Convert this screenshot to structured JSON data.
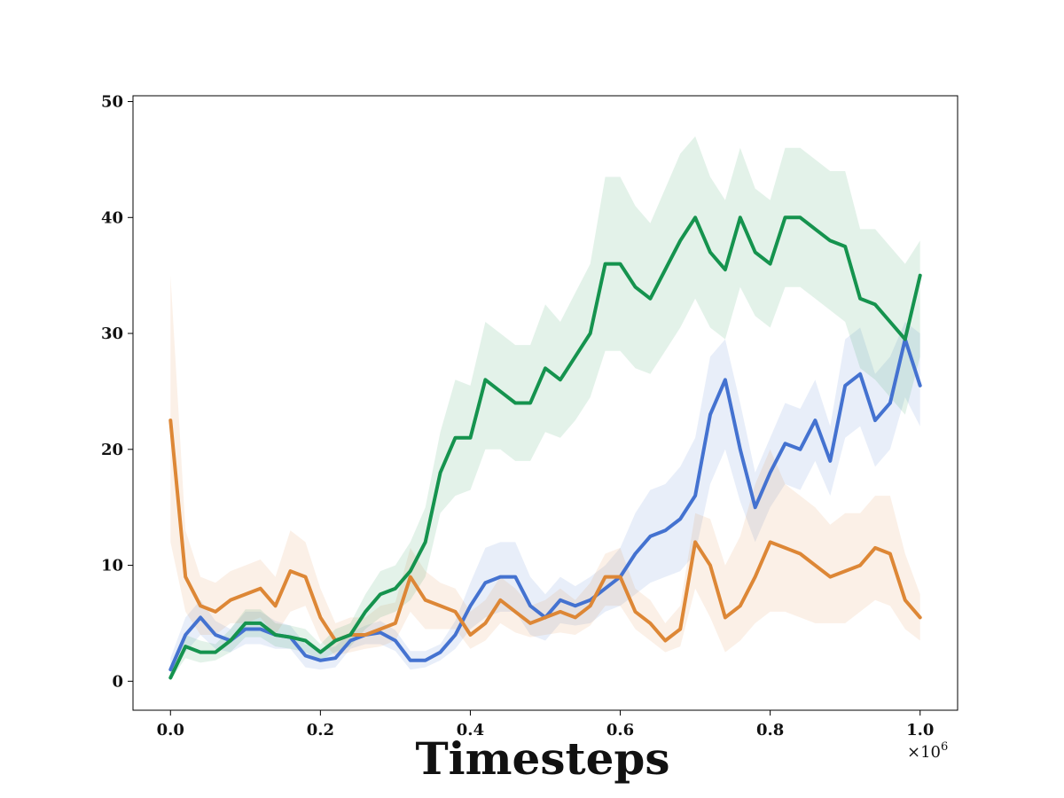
{
  "chart_data": {
    "type": "line",
    "title": "",
    "xlabel": "Timesteps",
    "ylabel": "",
    "x_offset_label": "×10",
    "x_offset_exponent": "6",
    "x_scale": 1000000,
    "xlim": [
      -0.05,
      1.05
    ],
    "ylim": [
      -2.5,
      50.5
    ],
    "xticks": [
      0.0,
      0.2,
      0.4,
      0.6,
      0.8,
      1.0
    ],
    "xtick_labels": [
      "0.0",
      "0.2",
      "0.4",
      "0.6",
      "0.8",
      "1.0"
    ],
    "yticks": [
      0,
      10,
      20,
      30,
      40,
      50
    ],
    "ytick_labels": [
      "0",
      "10",
      "20",
      "30",
      "40",
      "50"
    ],
    "grid": false,
    "legend": "none",
    "x": [
      0.0,
      0.02,
      0.04,
      0.06,
      0.08,
      0.1,
      0.12,
      0.14,
      0.16,
      0.18,
      0.2,
      0.22,
      0.24,
      0.26,
      0.28,
      0.3,
      0.32,
      0.34,
      0.36,
      0.38,
      0.4,
      0.42,
      0.44,
      0.46,
      0.48,
      0.5,
      0.52,
      0.54,
      0.56,
      0.58,
      0.6,
      0.62,
      0.64,
      0.66,
      0.68,
      0.7,
      0.72,
      0.74,
      0.76,
      0.78,
      0.8,
      0.82,
      0.84,
      0.86,
      0.88,
      0.9,
      0.92,
      0.94,
      0.96,
      0.98,
      1.0
    ],
    "series": [
      {
        "color": "#4472d0",
        "values": [
          1.0,
          4.0,
          5.5,
          4.0,
          3.5,
          4.5,
          4.5,
          4.0,
          3.8,
          2.2,
          1.8,
          2.0,
          3.5,
          4.0,
          4.2,
          3.5,
          1.8,
          1.8,
          2.5,
          4.0,
          6.5,
          8.5,
          9.0,
          9.0,
          6.5,
          5.5,
          7.0,
          6.5,
          7.0,
          8.0,
          9.0,
          11.0,
          12.5,
          13.0,
          14.0,
          16.0,
          23.0,
          26.0,
          20.0,
          15.0,
          18.0,
          20.5,
          20.0,
          22.5,
          19.0,
          25.5,
          26.5,
          22.5,
          24.0,
          29.5,
          25.5
        ],
        "lower": [
          0.5,
          2.5,
          4.0,
          2.8,
          2.5,
          3.2,
          3.2,
          2.8,
          2.8,
          1.2,
          1.0,
          1.2,
          2.8,
          3.2,
          3.2,
          2.6,
          1.0,
          1.2,
          1.8,
          2.8,
          4.5,
          5.5,
          6.0,
          6.0,
          4.0,
          3.5,
          5.0,
          4.8,
          5.0,
          6.0,
          6.5,
          7.5,
          8.5,
          9.0,
          9.5,
          11.0,
          17.0,
          20.0,
          15.5,
          12.0,
          15.0,
          17.0,
          16.5,
          19.0,
          16.0,
          21.0,
          22.0,
          18.5,
          20.0,
          24.5,
          22.0
        ],
        "upper": [
          2.0,
          5.5,
          7.0,
          5.2,
          4.5,
          6.0,
          6.0,
          5.2,
          4.8,
          3.2,
          2.8,
          3.0,
          4.2,
          4.8,
          5.2,
          4.4,
          2.6,
          2.6,
          3.2,
          5.2,
          8.5,
          11.5,
          12.0,
          12.0,
          9.0,
          7.5,
          9.0,
          8.2,
          9.0,
          10.0,
          11.5,
          14.5,
          16.5,
          17.0,
          18.5,
          21.0,
          28.0,
          29.5,
          24.0,
          18.0,
          21.0,
          24.0,
          23.5,
          26.0,
          22.0,
          29.5,
          30.5,
          26.5,
          28.0,
          31.0,
          30.0
        ]
      },
      {
        "color": "#dd8736",
        "values": [
          22.5,
          9.0,
          6.5,
          6.0,
          7.0,
          7.5,
          8.0,
          6.5,
          9.5,
          9.0,
          5.5,
          3.5,
          4.0,
          4.0,
          4.5,
          5.0,
          9.0,
          7.0,
          6.5,
          6.0,
          4.0,
          5.0,
          7.0,
          6.0,
          5.0,
          5.5,
          6.0,
          5.5,
          6.5,
          9.0,
          9.0,
          6.0,
          5.0,
          3.5,
          4.5,
          12.0,
          10.0,
          5.5,
          6.5,
          9.0,
          12.0,
          11.5,
          11.0,
          10.0,
          9.0,
          9.5,
          10.0,
          11.5,
          11.0,
          7.0,
          5.5
        ],
        "lower": [
          12.0,
          6.0,
          4.0,
          4.0,
          5.0,
          5.0,
          5.5,
          4.0,
          6.0,
          6.5,
          3.5,
          2.2,
          2.5,
          2.8,
          3.0,
          3.5,
          6.0,
          4.5,
          4.5,
          4.5,
          2.8,
          3.5,
          5.0,
          4.2,
          3.8,
          4.0,
          4.2,
          4.0,
          4.8,
          6.5,
          6.5,
          4.5,
          3.5,
          2.5,
          3.0,
          8.0,
          5.5,
          2.5,
          3.5,
          5.0,
          6.0,
          6.0,
          5.5,
          5.0,
          5.0,
          5.0,
          6.0,
          7.0,
          6.5,
          4.5,
          3.5
        ],
        "upper": [
          35.0,
          13.0,
          9.0,
          8.5,
          9.5,
          10.0,
          10.5,
          9.0,
          13.0,
          12.0,
          8.0,
          5.0,
          5.5,
          5.5,
          6.5,
          6.8,
          11.5,
          9.5,
          8.5,
          8.0,
          6.0,
          7.0,
          9.0,
          8.0,
          6.5,
          7.0,
          8.0,
          7.0,
          8.5,
          11.0,
          11.5,
          8.0,
          7.0,
          5.0,
          6.5,
          14.5,
          14.0,
          10.0,
          12.5,
          17.0,
          20.0,
          17.0,
          16.0,
          15.0,
          13.5,
          14.5,
          14.5,
          16.0,
          16.0,
          11.0,
          7.5
        ]
      },
      {
        "color": "#15934e",
        "values": [
          0.3,
          3.0,
          2.5,
          2.5,
          3.5,
          5.0,
          5.0,
          4.0,
          3.8,
          3.5,
          2.5,
          3.5,
          4.0,
          6.0,
          7.5,
          8.0,
          9.5,
          12.0,
          18.0,
          21.0,
          21.0,
          26.0,
          25.0,
          24.0,
          24.0,
          27.0,
          26.0,
          28.0,
          30.0,
          36.0,
          36.0,
          34.0,
          33.0,
          35.5,
          38.0,
          40.0,
          37.0,
          35.5,
          40.0,
          37.0,
          36.0,
          40.0,
          40.0,
          39.0,
          38.0,
          37.5,
          33.0,
          32.5,
          31.0,
          29.5,
          35.0
        ],
        "lower": [
          0.1,
          2.0,
          1.6,
          1.8,
          2.5,
          3.8,
          3.8,
          3.0,
          2.8,
          2.5,
          1.8,
          2.5,
          3.0,
          4.5,
          5.5,
          6.0,
          7.0,
          9.0,
          14.5,
          16.0,
          16.5,
          20.0,
          20.0,
          19.0,
          19.0,
          21.5,
          21.0,
          22.5,
          24.5,
          28.5,
          28.5,
          27.0,
          26.5,
          28.5,
          30.5,
          33.0,
          30.5,
          29.5,
          34.0,
          31.5,
          30.5,
          34.0,
          34.0,
          33.0,
          32.0,
          31.0,
          27.0,
          26.0,
          24.5,
          23.0,
          28.0
        ],
        "upper": [
          1.0,
          4.0,
          3.5,
          3.2,
          4.5,
          6.2,
          6.2,
          5.0,
          4.8,
          4.5,
          3.2,
          4.5,
          5.0,
          7.5,
          9.5,
          10.0,
          12.0,
          15.0,
          21.5,
          26.0,
          25.5,
          31.0,
          30.0,
          29.0,
          29.0,
          32.5,
          31.0,
          33.5,
          36.0,
          43.5,
          43.5,
          41.0,
          39.5,
          42.5,
          45.5,
          47.0,
          43.5,
          41.5,
          46.0,
          42.5,
          41.5,
          46.0,
          46.0,
          45.0,
          44.0,
          44.0,
          39.0,
          39.0,
          37.5,
          36.0,
          38.0
        ]
      }
    ]
  }
}
